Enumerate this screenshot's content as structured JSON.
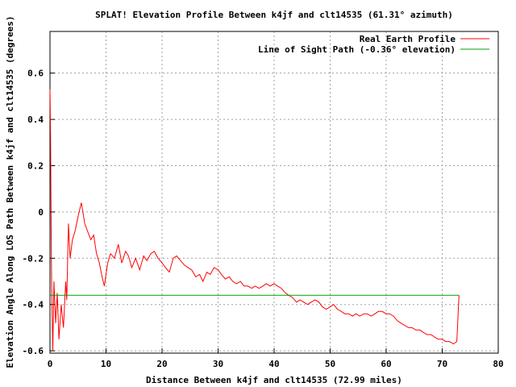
{
  "chart_data": {
    "type": "line",
    "title": "SPLAT! Elevation Profile Between k4jf and clt14535 (61.31° azimuth)",
    "xlabel": "Distance Between k4jf and clt14535 (72.99 miles)",
    "ylabel": "Elevation Angle Along LOS Path Between k4jf and clt14535 (degrees)",
    "xlim": [
      0,
      80
    ],
    "ylim": [
      -0.61,
      0.78
    ],
    "xticks": [
      "0",
      "10",
      "20",
      "30",
      "40",
      "50",
      "60",
      "70",
      "80"
    ],
    "xtick_values": [
      0,
      10,
      20,
      30,
      40,
      50,
      60,
      70,
      80
    ],
    "yticks": [
      "0.6",
      "0.4",
      "0.2",
      "0",
      "-0.2",
      "-0.4",
      "-0.6"
    ],
    "ytick_values": [
      0.6,
      0.4,
      0.2,
      0,
      -0.2,
      -0.4,
      -0.6
    ],
    "grid": true,
    "legend_position": "top-right",
    "series": [
      {
        "name": "Real Earth Profile",
        "color": "#ff0000",
        "points": [
          [
            0,
            0.53
          ],
          [
            0.1,
            0.33
          ],
          [
            0.2,
            -0.05
          ],
          [
            0.3,
            -0.32
          ],
          [
            0.5,
            -0.6
          ],
          [
            0.7,
            -0.3
          ],
          [
            1.0,
            -0.48
          ],
          [
            1.3,
            -0.35
          ],
          [
            1.6,
            -0.55
          ],
          [
            2.0,
            -0.4
          ],
          [
            2.4,
            -0.5
          ],
          [
            2.8,
            -0.3
          ],
          [
            3.0,
            -0.38
          ],
          [
            3.3,
            -0.05
          ],
          [
            3.6,
            -0.2
          ],
          [
            4.0,
            -0.12
          ],
          [
            4.5,
            -0.08
          ],
          [
            5.0,
            -0.02
          ],
          [
            5.6,
            0.04
          ],
          [
            6.2,
            -0.05
          ],
          [
            6.8,
            -0.09
          ],
          [
            7.3,
            -0.12
          ],
          [
            7.8,
            -0.1
          ],
          [
            8.3,
            -0.18
          ],
          [
            8.8,
            -0.22
          ],
          [
            9.3,
            -0.28
          ],
          [
            9.7,
            -0.32
          ],
          [
            10.3,
            -0.22
          ],
          [
            10.8,
            -0.18
          ],
          [
            11.5,
            -0.2
          ],
          [
            12.2,
            -0.14
          ],
          [
            12.8,
            -0.22
          ],
          [
            13.5,
            -0.17
          ],
          [
            14.0,
            -0.19
          ],
          [
            14.6,
            -0.24
          ],
          [
            15.3,
            -0.2
          ],
          [
            16.0,
            -0.25
          ],
          [
            16.7,
            -0.19
          ],
          [
            17.3,
            -0.21
          ],
          [
            18.0,
            -0.18
          ],
          [
            18.6,
            -0.17
          ],
          [
            19.3,
            -0.2
          ],
          [
            20.0,
            -0.22
          ],
          [
            20.6,
            -0.24
          ],
          [
            21.3,
            -0.26
          ],
          [
            22.0,
            -0.2
          ],
          [
            22.6,
            -0.19
          ],
          [
            23.3,
            -0.21
          ],
          [
            24.0,
            -0.23
          ],
          [
            24.6,
            -0.24
          ],
          [
            25.3,
            -0.25
          ],
          [
            26.0,
            -0.28
          ],
          [
            26.7,
            -0.27
          ],
          [
            27.3,
            -0.3
          ],
          [
            28.0,
            -0.26
          ],
          [
            28.6,
            -0.27
          ],
          [
            29.3,
            -0.24
          ],
          [
            30.0,
            -0.25
          ],
          [
            30.6,
            -0.27
          ],
          [
            31.3,
            -0.29
          ],
          [
            32.0,
            -0.28
          ],
          [
            32.6,
            -0.3
          ],
          [
            33.3,
            -0.31
          ],
          [
            34.0,
            -0.3
          ],
          [
            34.6,
            -0.32
          ],
          [
            35.3,
            -0.32
          ],
          [
            36.0,
            -0.33
          ],
          [
            36.6,
            -0.32
          ],
          [
            37.3,
            -0.33
          ],
          [
            38.0,
            -0.32
          ],
          [
            38.6,
            -0.31
          ],
          [
            39.3,
            -0.32
          ],
          [
            40.0,
            -0.31
          ],
          [
            40.6,
            -0.32
          ],
          [
            41.3,
            -0.33
          ],
          [
            42.0,
            -0.35
          ],
          [
            42.6,
            -0.36
          ],
          [
            43.3,
            -0.37
          ],
          [
            44.0,
            -0.39
          ],
          [
            44.6,
            -0.38
          ],
          [
            45.3,
            -0.39
          ],
          [
            46.0,
            -0.4
          ],
          [
            46.6,
            -0.39
          ],
          [
            47.3,
            -0.38
          ],
          [
            48.0,
            -0.39
          ],
          [
            48.6,
            -0.41
          ],
          [
            49.3,
            -0.42
          ],
          [
            50.0,
            -0.41
          ],
          [
            50.6,
            -0.4
          ],
          [
            51.3,
            -0.42
          ],
          [
            52.0,
            -0.43
          ],
          [
            52.6,
            -0.44
          ],
          [
            53.3,
            -0.44
          ],
          [
            54.0,
            -0.45
          ],
          [
            54.6,
            -0.44
          ],
          [
            55.3,
            -0.45
          ],
          [
            56.0,
            -0.44
          ],
          [
            56.6,
            -0.44
          ],
          [
            57.3,
            -0.45
          ],
          [
            58.0,
            -0.44
          ],
          [
            58.6,
            -0.43
          ],
          [
            59.3,
            -0.43
          ],
          [
            60.0,
            -0.44
          ],
          [
            60.6,
            -0.44
          ],
          [
            61.3,
            -0.45
          ],
          [
            62.0,
            -0.47
          ],
          [
            62.6,
            -0.48
          ],
          [
            63.3,
            -0.49
          ],
          [
            64.0,
            -0.5
          ],
          [
            64.6,
            -0.5
          ],
          [
            65.3,
            -0.51
          ],
          [
            66.0,
            -0.51
          ],
          [
            66.6,
            -0.52
          ],
          [
            67.3,
            -0.53
          ],
          [
            68.0,
            -0.53
          ],
          [
            68.6,
            -0.54
          ],
          [
            69.3,
            -0.55
          ],
          [
            70.0,
            -0.55
          ],
          [
            70.6,
            -0.56
          ],
          [
            71.3,
            -0.56
          ],
          [
            72.0,
            -0.57
          ],
          [
            72.6,
            -0.56
          ],
          [
            72.99,
            -0.36
          ]
        ]
      },
      {
        "name": "Line of Sight Path (-0.36° elevation)",
        "color": "#00a000",
        "points": [
          [
            0,
            -0.36
          ],
          [
            72.99,
            -0.36
          ]
        ]
      }
    ]
  }
}
